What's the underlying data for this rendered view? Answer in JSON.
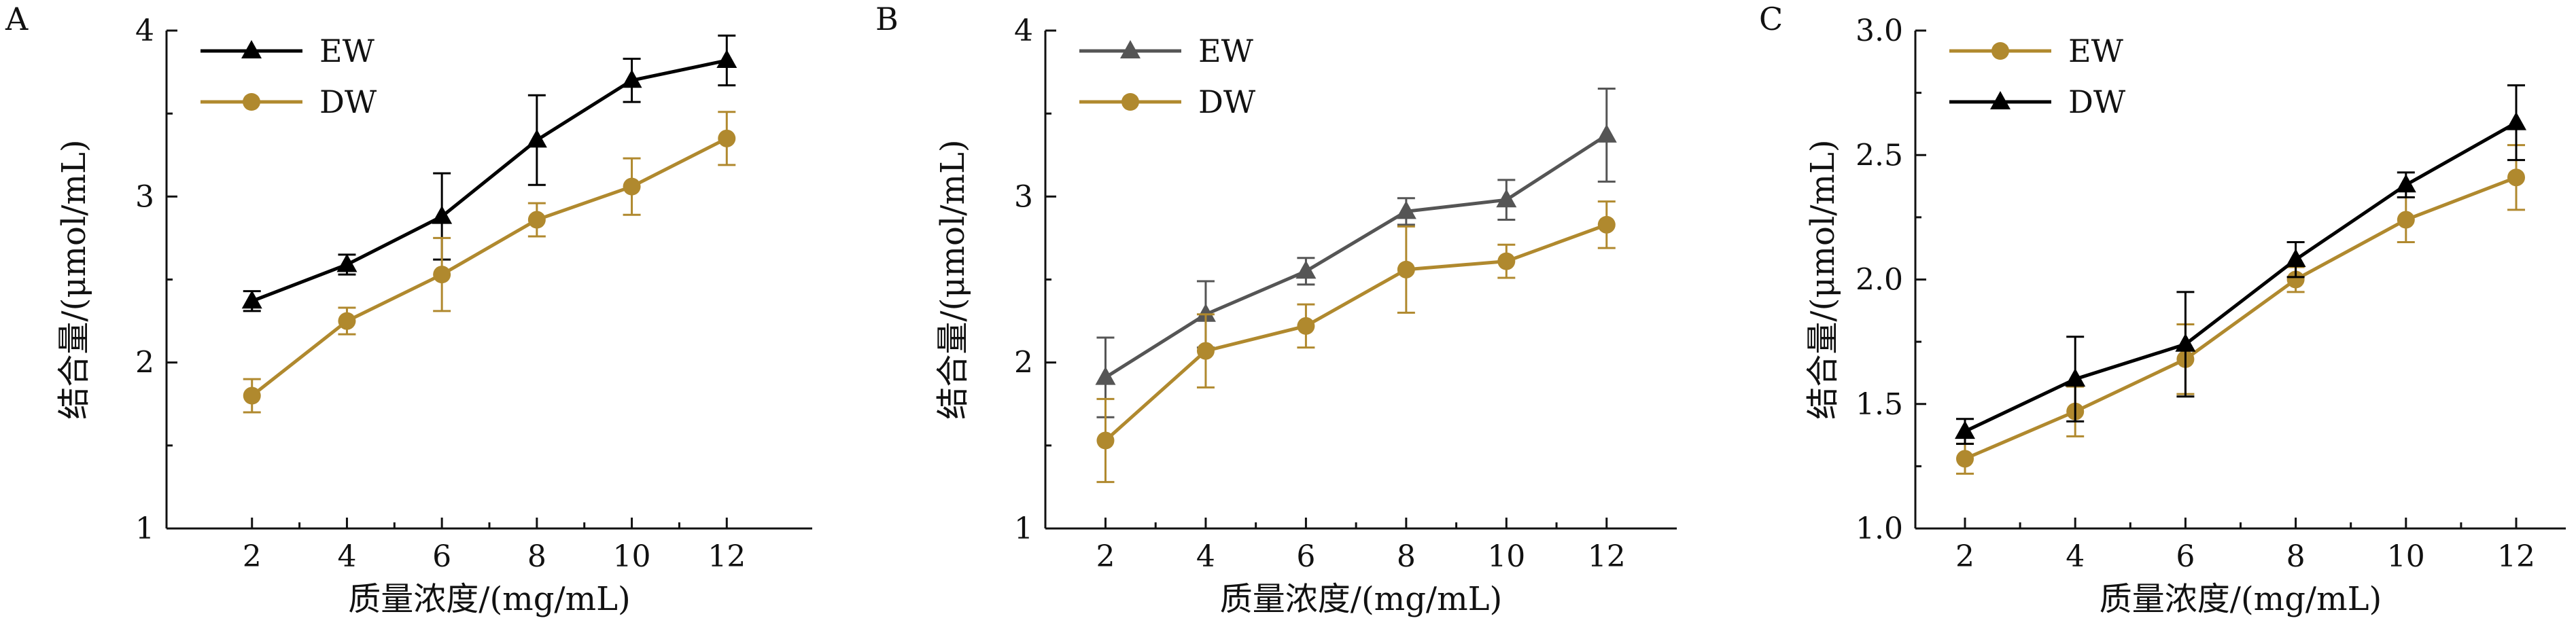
{
  "chart_data": [
    {
      "panel_label": "A",
      "type": "line",
      "xlabel": "质量浓度/(mg/mL)",
      "ylabel": "结合量/(μmol/mL)",
      "xlim": [
        0.2,
        13.8
      ],
      "ylim": [
        1,
        4
      ],
      "xticks": [
        2,
        4,
        6,
        8,
        10,
        12
      ],
      "yticks": [
        1,
        2,
        3,
        4
      ],
      "x": [
        2,
        4,
        6,
        8,
        10,
        12
      ],
      "legend": "top-left",
      "series": [
        {
          "name": "EW",
          "color": "#000000",
          "marker": "triangle",
          "values": [
            2.37,
            2.59,
            2.88,
            3.34,
            3.7,
            3.82
          ],
          "errors": [
            0.06,
            0.06,
            0.26,
            0.27,
            0.13,
            0.15
          ]
        },
        {
          "name": "DW",
          "color": "#b0892e",
          "marker": "circle",
          "values": [
            1.8,
            2.25,
            2.53,
            2.86,
            3.06,
            3.35
          ],
          "errors": [
            0.1,
            0.08,
            0.22,
            0.1,
            0.17,
            0.16
          ]
        }
      ]
    },
    {
      "panel_label": "B",
      "type": "line",
      "xlabel": "质量浓度/(mg/mL)",
      "ylabel": "结合量/(μmol/mL)",
      "xlim": [
        0.8,
        13.4
      ],
      "ylim": [
        1,
        4
      ],
      "xticks": [
        2,
        4,
        6,
        8,
        10,
        12
      ],
      "yticks": [
        1,
        2,
        3,
        4
      ],
      "x": [
        2,
        4,
        6,
        8,
        10,
        12
      ],
      "legend": "top-left",
      "series": [
        {
          "name": "EW",
          "color": "#555555",
          "marker": "triangle",
          "values": [
            1.91,
            2.29,
            2.55,
            2.91,
            2.98,
            3.37
          ],
          "errors": [
            0.24,
            0.2,
            0.08,
            0.08,
            0.12,
            0.28
          ]
        },
        {
          "name": "DW",
          "color": "#b0892e",
          "marker": "circle",
          "values": [
            1.53,
            2.07,
            2.22,
            2.56,
            2.61,
            2.83
          ],
          "errors": [
            0.25,
            0.22,
            0.13,
            0.26,
            0.1,
            0.14
          ]
        }
      ]
    },
    {
      "panel_label": "C",
      "type": "line",
      "xlabel": "质量浓度/(mg/mL)",
      "ylabel": "结合量/(μmol/mL)",
      "xlim": [
        1.1,
        12.9
      ],
      "ylim": [
        1.0,
        3.0
      ],
      "xticks": [
        2,
        4,
        6,
        8,
        10,
        12
      ],
      "yticks": [
        1.0,
        1.5,
        2.0,
        2.5,
        3.0
      ],
      "ytick_labels": [
        "1.0",
        "1.5",
        "2.0",
        "2.5",
        "3.0"
      ],
      "x": [
        2,
        4,
        6,
        8,
        10,
        12
      ],
      "legend": "top-left",
      "series": [
        {
          "name": "EW",
          "color": "#b0892e",
          "marker": "circle",
          "values": [
            1.28,
            1.47,
            1.68,
            2.0,
            2.24,
            2.41
          ],
          "errors": [
            0.06,
            0.1,
            0.14,
            0.05,
            0.09,
            0.13
          ]
        },
        {
          "name": "DW",
          "color": "#000000",
          "marker": "triangle",
          "values": [
            1.39,
            1.6,
            1.74,
            2.08,
            2.38,
            2.63
          ],
          "errors": [
            0.05,
            0.17,
            0.21,
            0.07,
            0.05,
            0.15
          ]
        }
      ]
    }
  ]
}
